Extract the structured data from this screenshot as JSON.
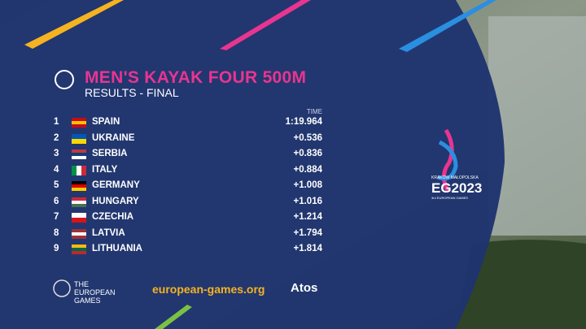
{
  "header": {
    "title": "MEN'S KAYAK FOUR 500M",
    "subtitle": "RESULTS - FINAL"
  },
  "table": {
    "column": "TIME",
    "rows": [
      [
        "1",
        "SPAIN",
        "1:19.964"
      ],
      [
        "2",
        "UKRAINE",
        "+0.536"
      ],
      [
        "3",
        "SERBIA",
        "+0.836"
      ],
      [
        "4",
        "ITALY",
        "+0.884"
      ],
      [
        "5",
        "GERMANY",
        "+1.008"
      ],
      [
        "6",
        "HUNGARY",
        "+1.016"
      ],
      [
        "7",
        "CZECHIA",
        "+1.214"
      ],
      [
        "8",
        "LATVIA",
        "+1.794"
      ],
      [
        "9",
        "LITHUANIA",
        "+1.814"
      ]
    ]
  },
  "logo": {
    "top": "KRAKÓW MAŁOPOLSKA",
    "main": "EG2023",
    "sub": "3rd EUROPEAN GAMES"
  },
  "footer": {
    "organizer": "THE EUROPEAN GAMES",
    "url": "european-games.org",
    "sponsor": "Atos"
  }
}
